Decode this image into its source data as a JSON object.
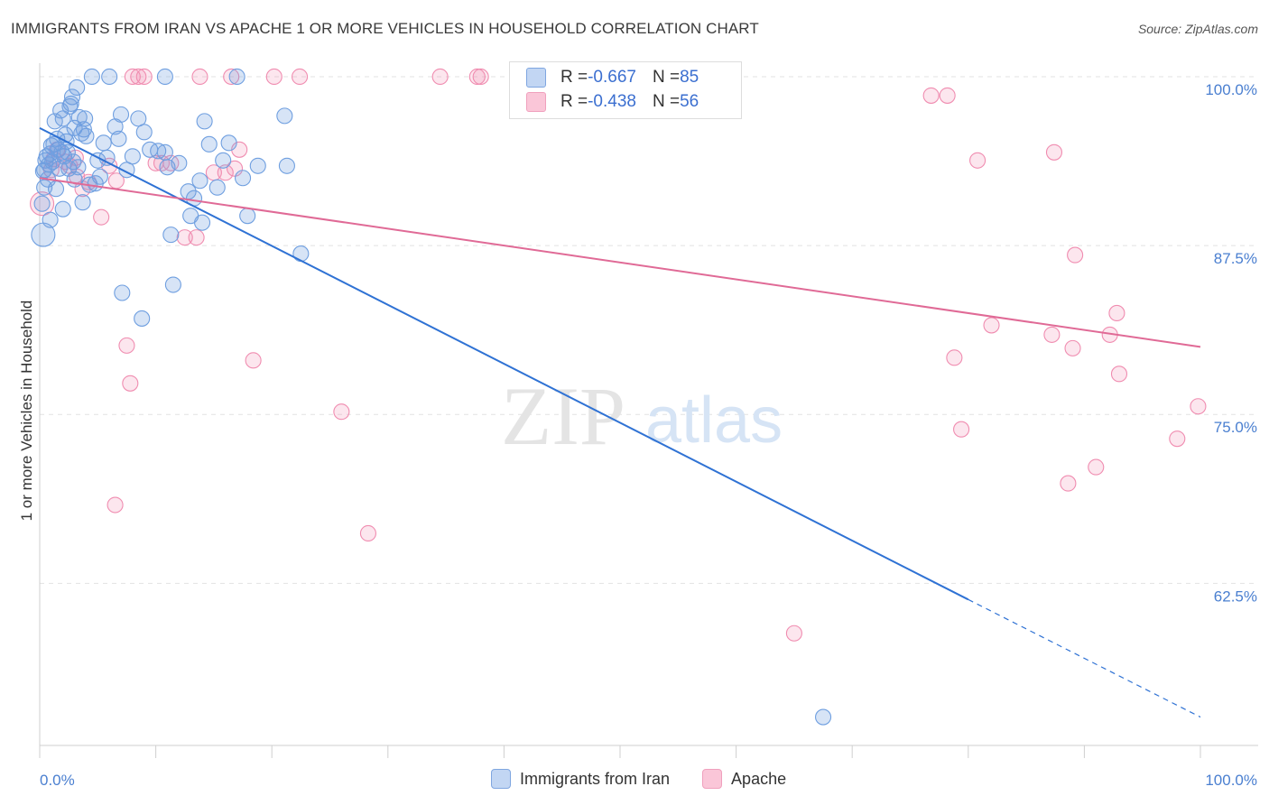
{
  "title": "IMMIGRANTS FROM IRAN VS APACHE 1 OR MORE VEHICLES IN HOUSEHOLD CORRELATION CHART",
  "source": "Source: ZipAtlas.com",
  "watermark": {
    "zip": "ZIP",
    "atlas": "atlas"
  },
  "colors": {
    "blue": "#6f9fe0",
    "blue_line": "#2f72d4",
    "pink": "#f08cb0",
    "pink_line": "#e06a96",
    "axis_text": "#4a7fd0"
  },
  "legend_stats": [
    {
      "r_label": "R = ",
      "r_value": "-0.667",
      "n_label": "N = ",
      "n_value": "85"
    },
    {
      "r_label": "R = ",
      "r_value": "-0.438",
      "n_label": "N = ",
      "n_value": "56"
    }
  ],
  "chart_data": {
    "type": "scatter",
    "title": "IMMIGRANTS FROM IRAN VS APACHE 1 OR MORE VEHICLES IN HOUSEHOLD CORRELATION CHART",
    "xlabel": "",
    "ylabel": "1 or more Vehicles in Household",
    "xlim": [
      0,
      100
    ],
    "ylim": [
      50.5,
      101
    ],
    "x_tick_labels": [
      "0.0%",
      "100.0%"
    ],
    "y_ticks": [
      62.5,
      75.0,
      87.5,
      100.0
    ],
    "y_tick_labels": [
      "62.5%",
      "75.0%",
      "87.5%",
      "100.0%"
    ],
    "series": [
      {
        "name": "Immigrants from Iran",
        "color": "#6f9fe0",
        "trend": {
          "x0": 0,
          "y0": 96.2,
          "x1": 80,
          "y1": 61.3,
          "dashed_to_x": 100,
          "dashed_to_y": 52.6
        },
        "points": [
          [
            0.3,
            88.3
          ],
          [
            0.2,
            90.6
          ],
          [
            0.3,
            93.0
          ],
          [
            0.4,
            91.8
          ],
          [
            0.5,
            93.8
          ],
          [
            0.6,
            94.1
          ],
          [
            0.8,
            93.5
          ],
          [
            0.9,
            94.3
          ],
          [
            1.0,
            94.9
          ],
          [
            1.2,
            95.0
          ],
          [
            1.3,
            96.7
          ],
          [
            1.5,
            95.4
          ],
          [
            1.6,
            94.6
          ],
          [
            1.8,
            97.5
          ],
          [
            2.0,
            96.9
          ],
          [
            2.2,
            95.7
          ],
          [
            2.4,
            94.4
          ],
          [
            2.6,
            97.8
          ],
          [
            2.8,
            98.5
          ],
          [
            3.0,
            96.2
          ],
          [
            3.2,
            99.2
          ],
          [
            3.4,
            97.0
          ],
          [
            3.6,
            95.8
          ],
          [
            3.8,
            96.1
          ],
          [
            0.9,
            89.4
          ],
          [
            1.4,
            91.7
          ],
          [
            2.0,
            90.2
          ],
          [
            2.5,
            93.2
          ],
          [
            3.0,
            92.4
          ],
          [
            4.5,
            100.0
          ],
          [
            6.0,
            100.0
          ],
          [
            10.8,
            100.0
          ],
          [
            17.0,
            100.0
          ],
          [
            5.5,
            95.1
          ],
          [
            6.5,
            96.3
          ],
          [
            7.0,
            97.2
          ],
          [
            8.5,
            96.9
          ],
          [
            4.8,
            92.1
          ],
          [
            5.0,
            93.8
          ],
          [
            5.2,
            92.6
          ],
          [
            7.5,
            93.1
          ],
          [
            10.2,
            94.5
          ],
          [
            10.8,
            94.4
          ],
          [
            11.0,
            93.3
          ],
          [
            12.8,
            91.5
          ],
          [
            13.3,
            91.0
          ],
          [
            14.2,
            96.7
          ],
          [
            14.6,
            95.0
          ],
          [
            15.3,
            91.8
          ],
          [
            17.5,
            92.5
          ],
          [
            18.8,
            93.4
          ],
          [
            21.1,
            97.1
          ],
          [
            21.3,
            93.4
          ],
          [
            17.9,
            89.7
          ],
          [
            13.0,
            89.7
          ],
          [
            14.0,
            89.2
          ],
          [
            11.3,
            88.3
          ],
          [
            22.5,
            86.9
          ],
          [
            7.1,
            84.0
          ],
          [
            8.8,
            82.1
          ],
          [
            11.5,
            84.6
          ],
          [
            3.7,
            90.7
          ],
          [
            2.1,
            94.1
          ],
          [
            0.7,
            92.4
          ],
          [
            1.1,
            93.7
          ],
          [
            1.7,
            93.2
          ],
          [
            2.3,
            95.2
          ],
          [
            2.9,
            93.7
          ],
          [
            3.3,
            93.3
          ],
          [
            4.0,
            95.6
          ],
          [
            4.3,
            92.0
          ],
          [
            5.8,
            94.0
          ],
          [
            6.8,
            95.4
          ],
          [
            8.0,
            94.1
          ],
          [
            9.0,
            95.9
          ],
          [
            9.5,
            94.6
          ],
          [
            12.0,
            93.6
          ],
          [
            13.8,
            92.3
          ],
          [
            15.8,
            93.8
          ],
          [
            16.3,
            95.1
          ],
          [
            67.5,
            52.6
          ],
          [
            2.7,
            98.0
          ],
          [
            3.9,
            96.9
          ],
          [
            1.9,
            94.4
          ],
          [
            0.4,
            93.1
          ]
        ]
      },
      {
        "name": "Apache",
        "color": "#f08cb0",
        "trend": {
          "x0": 0,
          "y0": 92.5,
          "x1": 100,
          "y1": 80.0
        },
        "points": [
          [
            0.2,
            90.6
          ],
          [
            1.0,
            93.1
          ],
          [
            1.5,
            94.6
          ],
          [
            2.2,
            93.7
          ],
          [
            3.1,
            94.0
          ],
          [
            3.7,
            91.7
          ],
          [
            4.2,
            92.2
          ],
          [
            5.3,
            89.6
          ],
          [
            6.0,
            93.4
          ],
          [
            6.6,
            92.3
          ],
          [
            7.5,
            80.1
          ],
          [
            7.8,
            77.3
          ],
          [
            8.0,
            100.0
          ],
          [
            8.5,
            100.0
          ],
          [
            9.0,
            100.0
          ],
          [
            10.0,
            93.6
          ],
          [
            10.5,
            93.6
          ],
          [
            11.3,
            93.6
          ],
          [
            12.5,
            88.1
          ],
          [
            13.5,
            88.1
          ],
          [
            13.8,
            100.0
          ],
          [
            15.0,
            92.9
          ],
          [
            16.0,
            92.9
          ],
          [
            16.5,
            100.0
          ],
          [
            16.8,
            93.2
          ],
          [
            17.2,
            94.6
          ],
          [
            18.4,
            79.0
          ],
          [
            20.2,
            100.0
          ],
          [
            22.4,
            100.0
          ],
          [
            26.0,
            75.2
          ],
          [
            28.3,
            66.2
          ],
          [
            34.5,
            100.0
          ],
          [
            37.7,
            100.0
          ],
          [
            38.0,
            100.0
          ],
          [
            65.0,
            58.8
          ],
          [
            76.8,
            98.6
          ],
          [
            78.2,
            98.6
          ],
          [
            78.8,
            79.2
          ],
          [
            79.4,
            73.9
          ],
          [
            80.8,
            93.8
          ],
          [
            82.0,
            81.6
          ],
          [
            87.2,
            80.9
          ],
          [
            87.4,
            94.4
          ],
          [
            88.6,
            69.9
          ],
          [
            89.0,
            79.9
          ],
          [
            89.2,
            86.8
          ],
          [
            91.0,
            71.1
          ],
          [
            92.2,
            80.9
          ],
          [
            92.8,
            82.5
          ],
          [
            93.0,
            78.0
          ],
          [
            98.0,
            73.2
          ],
          [
            99.8,
            75.6
          ],
          [
            6.5,
            68.3
          ],
          [
            1.2,
            93.9
          ],
          [
            2.6,
            93.4
          ],
          [
            3.2,
            92.6
          ]
        ]
      }
    ]
  },
  "legend_bottom": [
    {
      "label": "Immigrants from Iran"
    },
    {
      "label": "Apache"
    }
  ]
}
